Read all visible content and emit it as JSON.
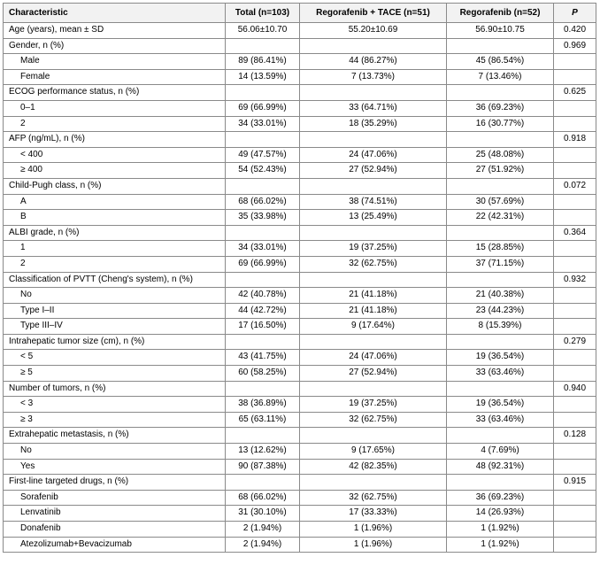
{
  "table": {
    "headers": [
      "Characteristic",
      "Total (n=103)",
      "Regorafenib + TACE (n=51)",
      "Regorafenib (n=52)",
      "P"
    ],
    "rows": [
      {
        "label": "Age (years), mean ± SD",
        "indent": false,
        "total": "56.06±10.70",
        "combo": "55.20±10.69",
        "rego": "56.90±10.75",
        "p": "0.420"
      },
      {
        "label": "Gender, n (%)",
        "indent": false,
        "total": "",
        "combo": "",
        "rego": "",
        "p": "0.969"
      },
      {
        "label": "Male",
        "indent": true,
        "total": "89 (86.41%)",
        "combo": "44 (86.27%)",
        "rego": "45 (86.54%)",
        "p": ""
      },
      {
        "label": "Female",
        "indent": true,
        "total": "14 (13.59%)",
        "combo": "7 (13.73%)",
        "rego": "7 (13.46%)",
        "p": ""
      },
      {
        "label": "ECOG performance status, n (%)",
        "indent": false,
        "total": "",
        "combo": "",
        "rego": "",
        "p": "0.625"
      },
      {
        "label": "0–1",
        "indent": true,
        "total": "69 (66.99%)",
        "combo": "33 (64.71%)",
        "rego": "36 (69.23%)",
        "p": ""
      },
      {
        "label": "2",
        "indent": true,
        "total": "34 (33.01%)",
        "combo": "18 (35.29%)",
        "rego": "16 (30.77%)",
        "p": ""
      },
      {
        "label": "AFP (ng/mL), n (%)",
        "indent": false,
        "total": "",
        "combo": "",
        "rego": "",
        "p": "0.918"
      },
      {
        "label": "< 400",
        "indent": true,
        "total": "49 (47.57%)",
        "combo": "24 (47.06%)",
        "rego": "25 (48.08%)",
        "p": ""
      },
      {
        "label": "≥ 400",
        "indent": true,
        "total": "54 (52.43%)",
        "combo": "27 (52.94%)",
        "rego": "27 (51.92%)",
        "p": ""
      },
      {
        "label": "Child-Pugh class, n (%)",
        "indent": false,
        "total": "",
        "combo": "",
        "rego": "",
        "p": "0.072"
      },
      {
        "label": "A",
        "indent": true,
        "total": "68 (66.02%)",
        "combo": "38 (74.51%)",
        "rego": "30 (57.69%)",
        "p": ""
      },
      {
        "label": "B",
        "indent": true,
        "total": "35 (33.98%)",
        "combo": "13 (25.49%)",
        "rego": "22 (42.31%)",
        "p": ""
      },
      {
        "label": "ALBI grade, n (%)",
        "indent": false,
        "total": "",
        "combo": "",
        "rego": "",
        "p": "0.364"
      },
      {
        "label": "1",
        "indent": true,
        "total": "34 (33.01%)",
        "combo": "19 (37.25%)",
        "rego": "15 (28.85%)",
        "p": ""
      },
      {
        "label": "2",
        "indent": true,
        "total": "69 (66.99%)",
        "combo": "32 (62.75%)",
        "rego": "37 (71.15%)",
        "p": ""
      },
      {
        "label": "Classification of PVTT (Cheng's system), n (%)",
        "indent": false,
        "total": "",
        "combo": "",
        "rego": "",
        "p": "0.932"
      },
      {
        "label": "No",
        "indent": true,
        "total": "42 (40.78%)",
        "combo": "21 (41.18%)",
        "rego": "21 (40.38%)",
        "p": ""
      },
      {
        "label": "Type I–II",
        "indent": true,
        "total": "44 (42.72%)",
        "combo": "21 (41.18%)",
        "rego": "23 (44.23%)",
        "p": ""
      },
      {
        "label": "Type III–IV",
        "indent": true,
        "total": "17 (16.50%)",
        "combo": "9 (17.64%)",
        "rego": "8 (15.39%)",
        "p": ""
      },
      {
        "label": "Intrahepatic tumor size (cm), n (%)",
        "indent": false,
        "total": "",
        "combo": "",
        "rego": "",
        "p": "0.279"
      },
      {
        "label": "< 5",
        "indent": true,
        "total": "43 (41.75%)",
        "combo": "24 (47.06%)",
        "rego": "19 (36.54%)",
        "p": ""
      },
      {
        "label": "≥ 5",
        "indent": true,
        "total": "60 (58.25%)",
        "combo": "27 (52.94%)",
        "rego": "33 (63.46%)",
        "p": ""
      },
      {
        "label": "Number of tumors, n (%)",
        "indent": false,
        "total": "",
        "combo": "",
        "rego": "",
        "p": "0.940"
      },
      {
        "label": "< 3",
        "indent": true,
        "total": "38 (36.89%)",
        "combo": "19 (37.25%)",
        "rego": "19 (36.54%)",
        "p": ""
      },
      {
        "label": "≥ 3",
        "indent": true,
        "total": "65 (63.11%)",
        "combo": "32 (62.75%)",
        "rego": "33 (63.46%)",
        "p": ""
      },
      {
        "label": "Extrahepatic metastasis, n (%)",
        "indent": false,
        "total": "",
        "combo": "",
        "rego": "",
        "p": "0.128"
      },
      {
        "label": "No",
        "indent": true,
        "total": "13 (12.62%)",
        "combo": "9 (17.65%)",
        "rego": "4 (7.69%)",
        "p": ""
      },
      {
        "label": "Yes",
        "indent": true,
        "total": "90 (87.38%)",
        "combo": "42 (82.35%)",
        "rego": "48 (92.31%)",
        "p": ""
      },
      {
        "label": "First-line targeted drugs, n (%)",
        "indent": false,
        "total": "",
        "combo": "",
        "rego": "",
        "p": "0.915"
      },
      {
        "label": "Sorafenib",
        "indent": true,
        "total": "68 (66.02%)",
        "combo": "32 (62.75%)",
        "rego": "36 (69.23%)",
        "p": ""
      },
      {
        "label": "Lenvatinib",
        "indent": true,
        "total": "31 (30.10%)",
        "combo": "17 (33.33%)",
        "rego": "14 (26.93%)",
        "p": ""
      },
      {
        "label": "Donafenib",
        "indent": true,
        "total": "2 (1.94%)",
        "combo": "1 (1.96%)",
        "rego": "1 (1.92%)",
        "p": ""
      },
      {
        "label": "Atezolizumab+Bevacizumab",
        "indent": true,
        "total": "2 (1.94%)",
        "combo": "1 (1.96%)",
        "rego": "1 (1.92%)",
        "p": ""
      }
    ]
  }
}
